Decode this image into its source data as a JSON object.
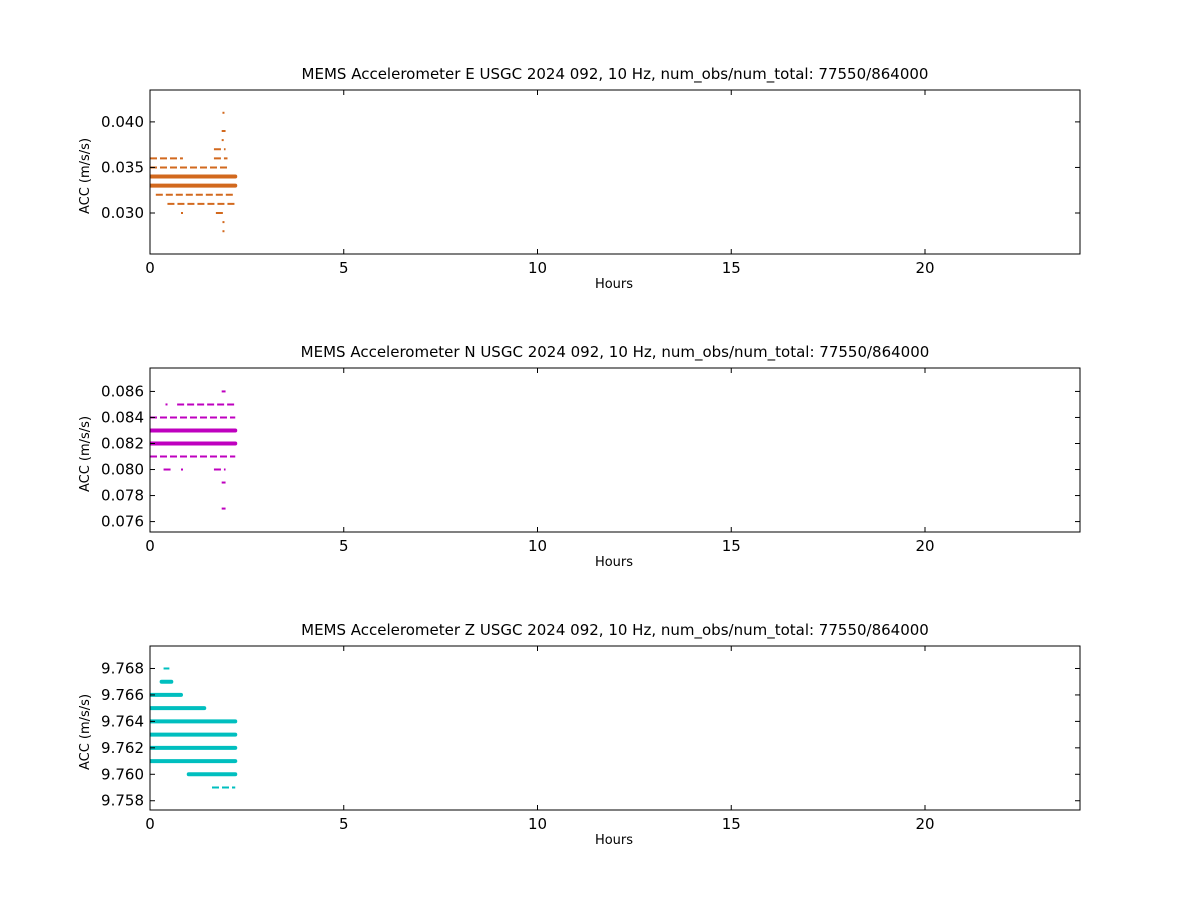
{
  "chart_data": [
    {
      "type": "scatter",
      "title": "MEMS Accelerometer E USGC 2024 092, 10 Hz, num_obs/num_total: 77550/864000",
      "xlabel": "Hours",
      "ylabel": "ACC (m/s/s)",
      "xlim": [
        0,
        24
      ],
      "ylim": [
        0.0255,
        0.0435
      ],
      "xticks": [
        0,
        5,
        10,
        15,
        20
      ],
      "xtick_labels": [
        "0",
        "5",
        "10",
        "15",
        "20"
      ],
      "yticks": [
        0.03,
        0.035,
        0.04
      ],
      "ytick_labels": [
        "0.030",
        "0.035",
        "0.040"
      ],
      "grid": false,
      "color": "#d2691e",
      "series": [
        {
          "values": [
            {
              "y": 0.036,
              "x0": 0.0,
              "x1": 0.85,
              "dense": false
            },
            {
              "y": 0.036,
              "x0": 1.65,
              "x1": 2.0,
              "dense": false
            },
            {
              "y": 0.035,
              "x0": 0.0,
              "x1": 2.05,
              "dense": false
            },
            {
              "y": 0.034,
              "x0": 0.0,
              "x1": 2.2,
              "dense": true
            },
            {
              "y": 0.033,
              "x0": 0.0,
              "x1": 2.2,
              "dense": true
            },
            {
              "y": 0.032,
              "x0": 0.15,
              "x1": 2.2,
              "dense": false
            },
            {
              "y": 0.031,
              "x0": 0.45,
              "x1": 2.2,
              "dense": false
            },
            {
              "y": 0.041,
              "x0": 1.87,
              "x1": 1.9,
              "dense": false
            },
            {
              "y": 0.039,
              "x0": 1.85,
              "x1": 1.95,
              "dense": false
            },
            {
              "y": 0.038,
              "x0": 1.85,
              "x1": 1.9,
              "dense": false
            },
            {
              "y": 0.037,
              "x0": 1.65,
              "x1": 1.95,
              "dense": false
            },
            {
              "y": 0.03,
              "x0": 0.8,
              "x1": 0.85,
              "dense": false
            },
            {
              "y": 0.03,
              "x0": 1.7,
              "x1": 1.95,
              "dense": false
            },
            {
              "y": 0.029,
              "x0": 1.87,
              "x1": 1.92,
              "dense": false
            },
            {
              "y": 0.028,
              "x0": 1.87,
              "x1": 1.92,
              "dense": false
            }
          ]
        }
      ]
    },
    {
      "type": "scatter",
      "title": "MEMS Accelerometer N USGC 2024 092, 10 Hz, num_obs/num_total: 77550/864000",
      "xlabel": "Hours",
      "ylabel": "ACC (m/s/s)",
      "xlim": [
        0,
        24
      ],
      "ylim": [
        0.0752,
        0.0878
      ],
      "xticks": [
        0,
        5,
        10,
        15,
        20
      ],
      "xtick_labels": [
        "0",
        "5",
        "10",
        "15",
        "20"
      ],
      "yticks": [
        0.076,
        0.078,
        0.08,
        0.082,
        0.084,
        0.086
      ],
      "ytick_labels": [
        "0.076",
        "0.078",
        "0.080",
        "0.082",
        "0.084",
        "0.086"
      ],
      "grid": false,
      "color": "#bf00bf",
      "series": [
        {
          "values": [
            {
              "y": 0.086,
              "x0": 1.85,
              "x1": 1.95,
              "dense": false
            },
            {
              "y": 0.085,
              "x0": 0.4,
              "x1": 0.45,
              "dense": false
            },
            {
              "y": 0.085,
              "x0": 0.7,
              "x1": 2.2,
              "dense": false
            },
            {
              "y": 0.084,
              "x0": 0.0,
              "x1": 2.2,
              "dense": false
            },
            {
              "y": 0.083,
              "x0": 0.0,
              "x1": 2.2,
              "dense": true
            },
            {
              "y": 0.082,
              "x0": 0.0,
              "x1": 2.2,
              "dense": true
            },
            {
              "y": 0.081,
              "x0": 0.0,
              "x1": 2.2,
              "dense": false
            },
            {
              "y": 0.08,
              "x0": 0.35,
              "x1": 0.55,
              "dense": false
            },
            {
              "y": 0.08,
              "x0": 0.8,
              "x1": 0.85,
              "dense": false
            },
            {
              "y": 0.08,
              "x0": 1.65,
              "x1": 1.95,
              "dense": false
            },
            {
              "y": 0.079,
              "x0": 1.85,
              "x1": 1.95,
              "dense": false
            },
            {
              "y": 0.077,
              "x0": 1.85,
              "x1": 1.95,
              "dense": false
            }
          ]
        }
      ]
    },
    {
      "type": "scatter",
      "title": "MEMS Accelerometer Z USGC 2024 092, 10 Hz, num_obs/num_total: 77550/864000",
      "xlabel": "Hours",
      "ylabel": "ACC (m/s/s)",
      "xlim": [
        0,
        24
      ],
      "ylim": [
        9.7573,
        9.7697
      ],
      "xticks": [
        0,
        5,
        10,
        15,
        20
      ],
      "xtick_labels": [
        "0",
        "5",
        "10",
        "15",
        "20"
      ],
      "yticks": [
        9.758,
        9.76,
        9.762,
        9.764,
        9.766,
        9.768
      ],
      "ytick_labels": [
        "9.758",
        "9.760",
        "9.762",
        "9.764",
        "9.766",
        "9.768"
      ],
      "grid": false,
      "color": "#00bfbf",
      "series": [
        {
          "values": [
            {
              "y": 9.768,
              "x0": 0.35,
              "x1": 0.5,
              "dense": false
            },
            {
              "y": 9.767,
              "x0": 0.3,
              "x1": 0.55,
              "dense": true
            },
            {
              "y": 9.766,
              "x0": 0.0,
              "x1": 0.8,
              "dense": true
            },
            {
              "y": 9.765,
              "x0": 0.0,
              "x1": 1.4,
              "dense": true
            },
            {
              "y": 9.764,
              "x0": 0.0,
              "x1": 2.2,
              "dense": true
            },
            {
              "y": 9.763,
              "x0": 0.0,
              "x1": 2.2,
              "dense": true
            },
            {
              "y": 9.762,
              "x0": 0.0,
              "x1": 2.2,
              "dense": true
            },
            {
              "y": 9.761,
              "x0": 0.0,
              "x1": 2.2,
              "dense": true
            },
            {
              "y": 9.76,
              "x0": 1.0,
              "x1": 2.2,
              "dense": true
            },
            {
              "y": 9.759,
              "x0": 1.6,
              "x1": 2.2,
              "dense": false
            }
          ]
        }
      ]
    }
  ]
}
